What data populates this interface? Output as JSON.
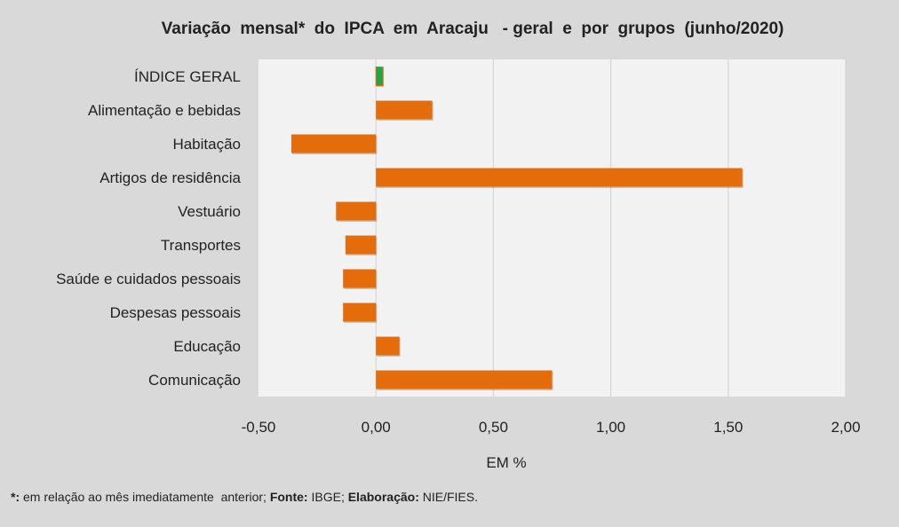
{
  "chart_data": {
    "type": "bar",
    "orientation": "horizontal",
    "title": "Variação  mensal*  do  IPCA  em  Aracaju   - geral  e  por  grupos  (junho/2020)",
    "xlabel": "EM %",
    "ylabel": "",
    "categories": [
      "ÍNDICE GERAL",
      "Alimentação e bebidas",
      "Habitação",
      "Artigos de residência",
      "Vestuário",
      "Transportes",
      "Saúde e cuidados pessoais",
      "Despesas pessoais",
      "Educação",
      "Comunicação"
    ],
    "values": [
      0.03,
      0.24,
      -0.36,
      1.56,
      -0.17,
      -0.13,
      -0.14,
      -0.14,
      0.1,
      0.75
    ],
    "xlim": [
      -0.5,
      2.0
    ],
    "xticks": [
      "-0,50",
      "0,00",
      "0,50",
      "1,00",
      "1,50",
      "2,00"
    ],
    "xtick_values": [
      -0.5,
      0,
      0.5,
      1.0,
      1.5,
      2.0
    ],
    "grid": "vertical",
    "legend": "none",
    "colors": {
      "highlight": "#1fa64a",
      "bars": "#e46c0a",
      "plot_bg": "#f2f2f2",
      "page_bg": "#d9d9d9",
      "grid": "#d0d0d0"
    }
  },
  "footnote": {
    "star": "*:",
    "star_text": " em relação ao mês imediatamente  anterior; ",
    "fonte_label": "Fonte:",
    "fonte_text": " IBGE; ",
    "elab_label": "Elaboração:",
    "elab_text": " NIE/FIES."
  }
}
